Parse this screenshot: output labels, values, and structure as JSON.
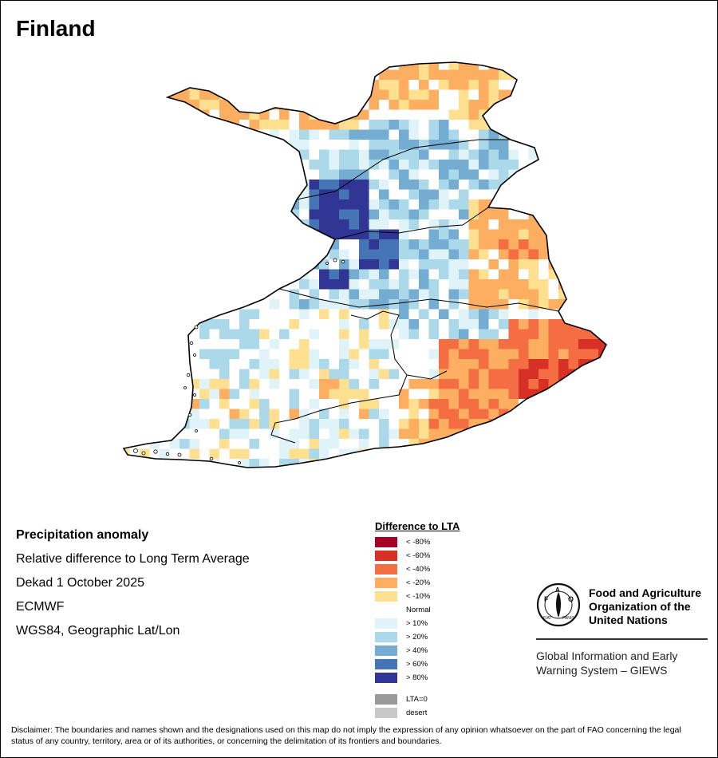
{
  "title": "Finland",
  "info": {
    "heading": "Precipitation anomaly",
    "line1": "Relative difference to Long Term Average",
    "line2": "Dekad 1 October 2025",
    "line3": "ECMWF",
    "line4": "WGS84, Geographic Lat/Lon"
  },
  "legend": {
    "title": "Difference to LTA",
    "items": [
      {
        "label": "< -80%",
        "color": "#a50026"
      },
      {
        "label": "< -60%",
        "color": "#d73027"
      },
      {
        "label": "< -40%",
        "color": "#f46d43"
      },
      {
        "label": "< -20%",
        "color": "#fdae61"
      },
      {
        "label": "< -10%",
        "color": "#fee090"
      },
      {
        "label": "Normal",
        "color": "#ffffff"
      },
      {
        "label": "> 10%",
        "color": "#e0f3f8"
      },
      {
        "label": "> 20%",
        "color": "#abd9e9"
      },
      {
        "label": "> 40%",
        "color": "#74add1"
      },
      {
        "label": "> 60%",
        "color": "#4575b4"
      },
      {
        "label": "> 80%",
        "color": "#313695"
      }
    ],
    "extra": [
      {
        "label": "LTA=0",
        "color": "#9a9a9a"
      },
      {
        "label": "desert",
        "color": "#c8c8c8"
      }
    ]
  },
  "org": {
    "name": "Food and Agriculture Organization of the United Nations",
    "logo_text": "FAO",
    "logo_motto": "FIAT PANIS",
    "system": "Global Information and Early Warning System – GIEWS"
  },
  "disclaimer": "Disclaimer: The boundaries and names shown and the designations used on this map do not imply the expression of any opinion whatsoever on the part of FAO concerning the legal status of any country, territory, area or of its authorities, or concerning the delimitation of its frontiers and boundaries."
}
